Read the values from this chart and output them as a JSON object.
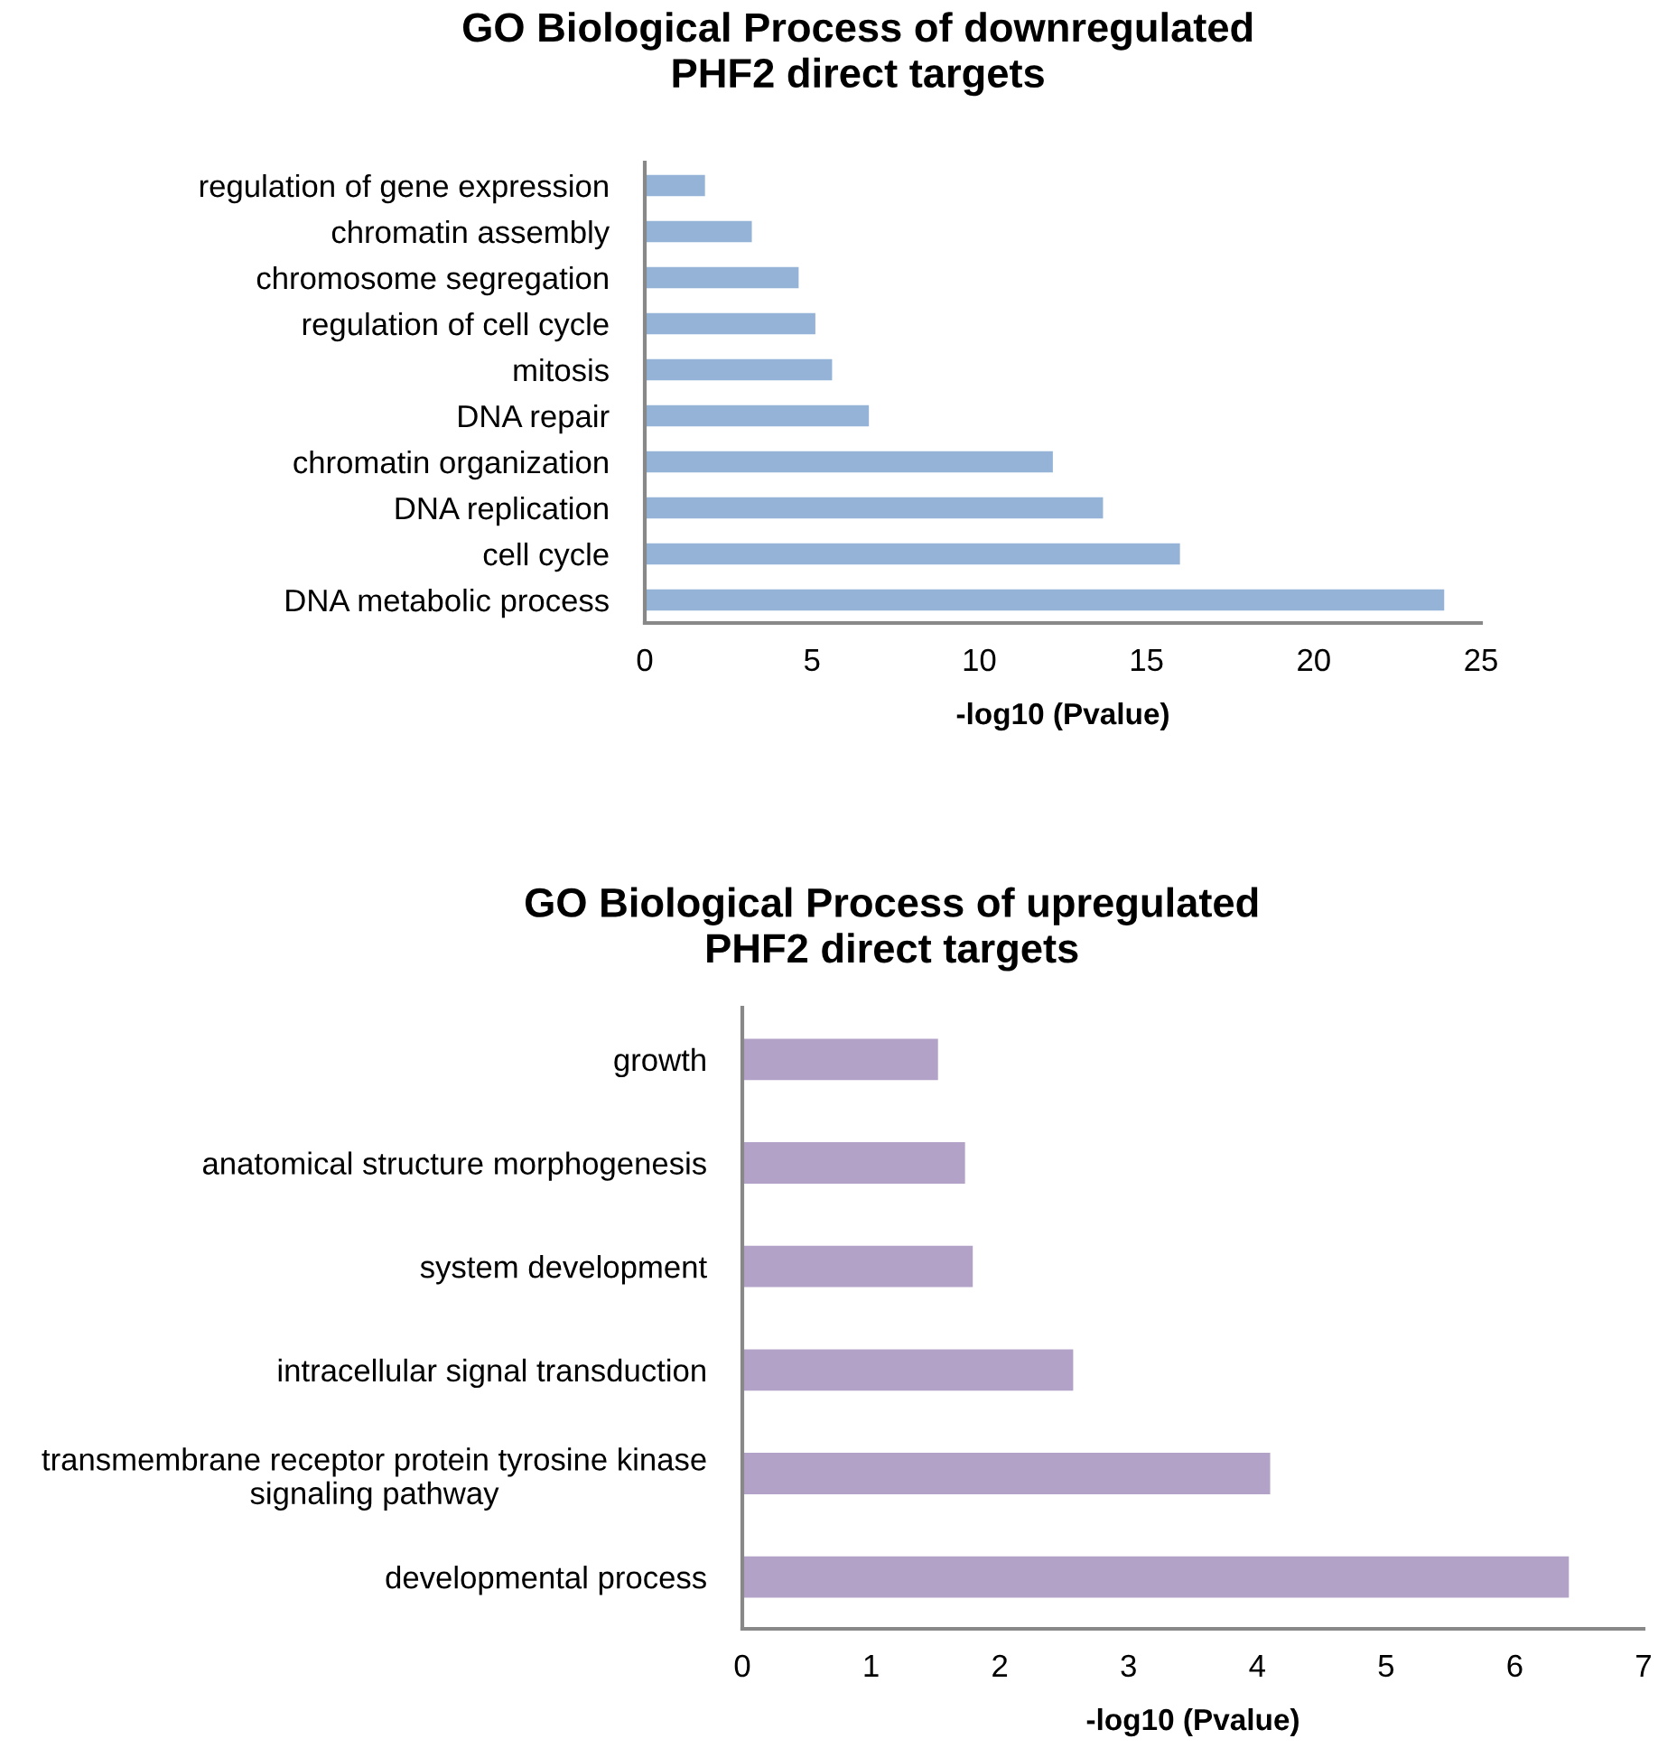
{
  "chart_data": [
    {
      "type": "bar",
      "orientation": "horizontal",
      "title": "GO Biological Process of downregulated\nPHF2 direct targets",
      "xlabel": "-log10 (Pvalue)",
      "categories": [
        "regulation of gene expression",
        "chromatin assembly",
        "chromosome segregation",
        "regulation of cell cycle",
        "mitosis",
        "DNA repair",
        "chromatin organization",
        "DNA replication",
        "cell cycle",
        "DNA metabolic process"
      ],
      "values": [
        1.8,
        3.2,
        4.6,
        5.1,
        5.6,
        6.7,
        12.2,
        13.7,
        16.0,
        23.9
      ],
      "color": "#95b3d7",
      "xlim": [
        0,
        25
      ],
      "xticks": [
        0,
        5,
        10,
        15,
        20,
        25
      ]
    },
    {
      "type": "bar",
      "orientation": "horizontal",
      "title": "GO Biological Process of upregulated\nPHF2 direct targets",
      "xlabel": "-log10 (Pvalue)",
      "categories": [
        "growth",
        "anatomical structure morphogenesis",
        "system development",
        "intracellular signal transduction",
        "transmembrane receptor protein tyrosine kinase\nsignaling pathway",
        "developmental process"
      ],
      "values": [
        1.52,
        1.73,
        1.79,
        2.57,
        4.1,
        6.42
      ],
      "color": "#b3a2c7",
      "xlim": [
        0,
        7
      ],
      "xticks": [
        0,
        1,
        2,
        3,
        4,
        5,
        6,
        7
      ]
    }
  ]
}
